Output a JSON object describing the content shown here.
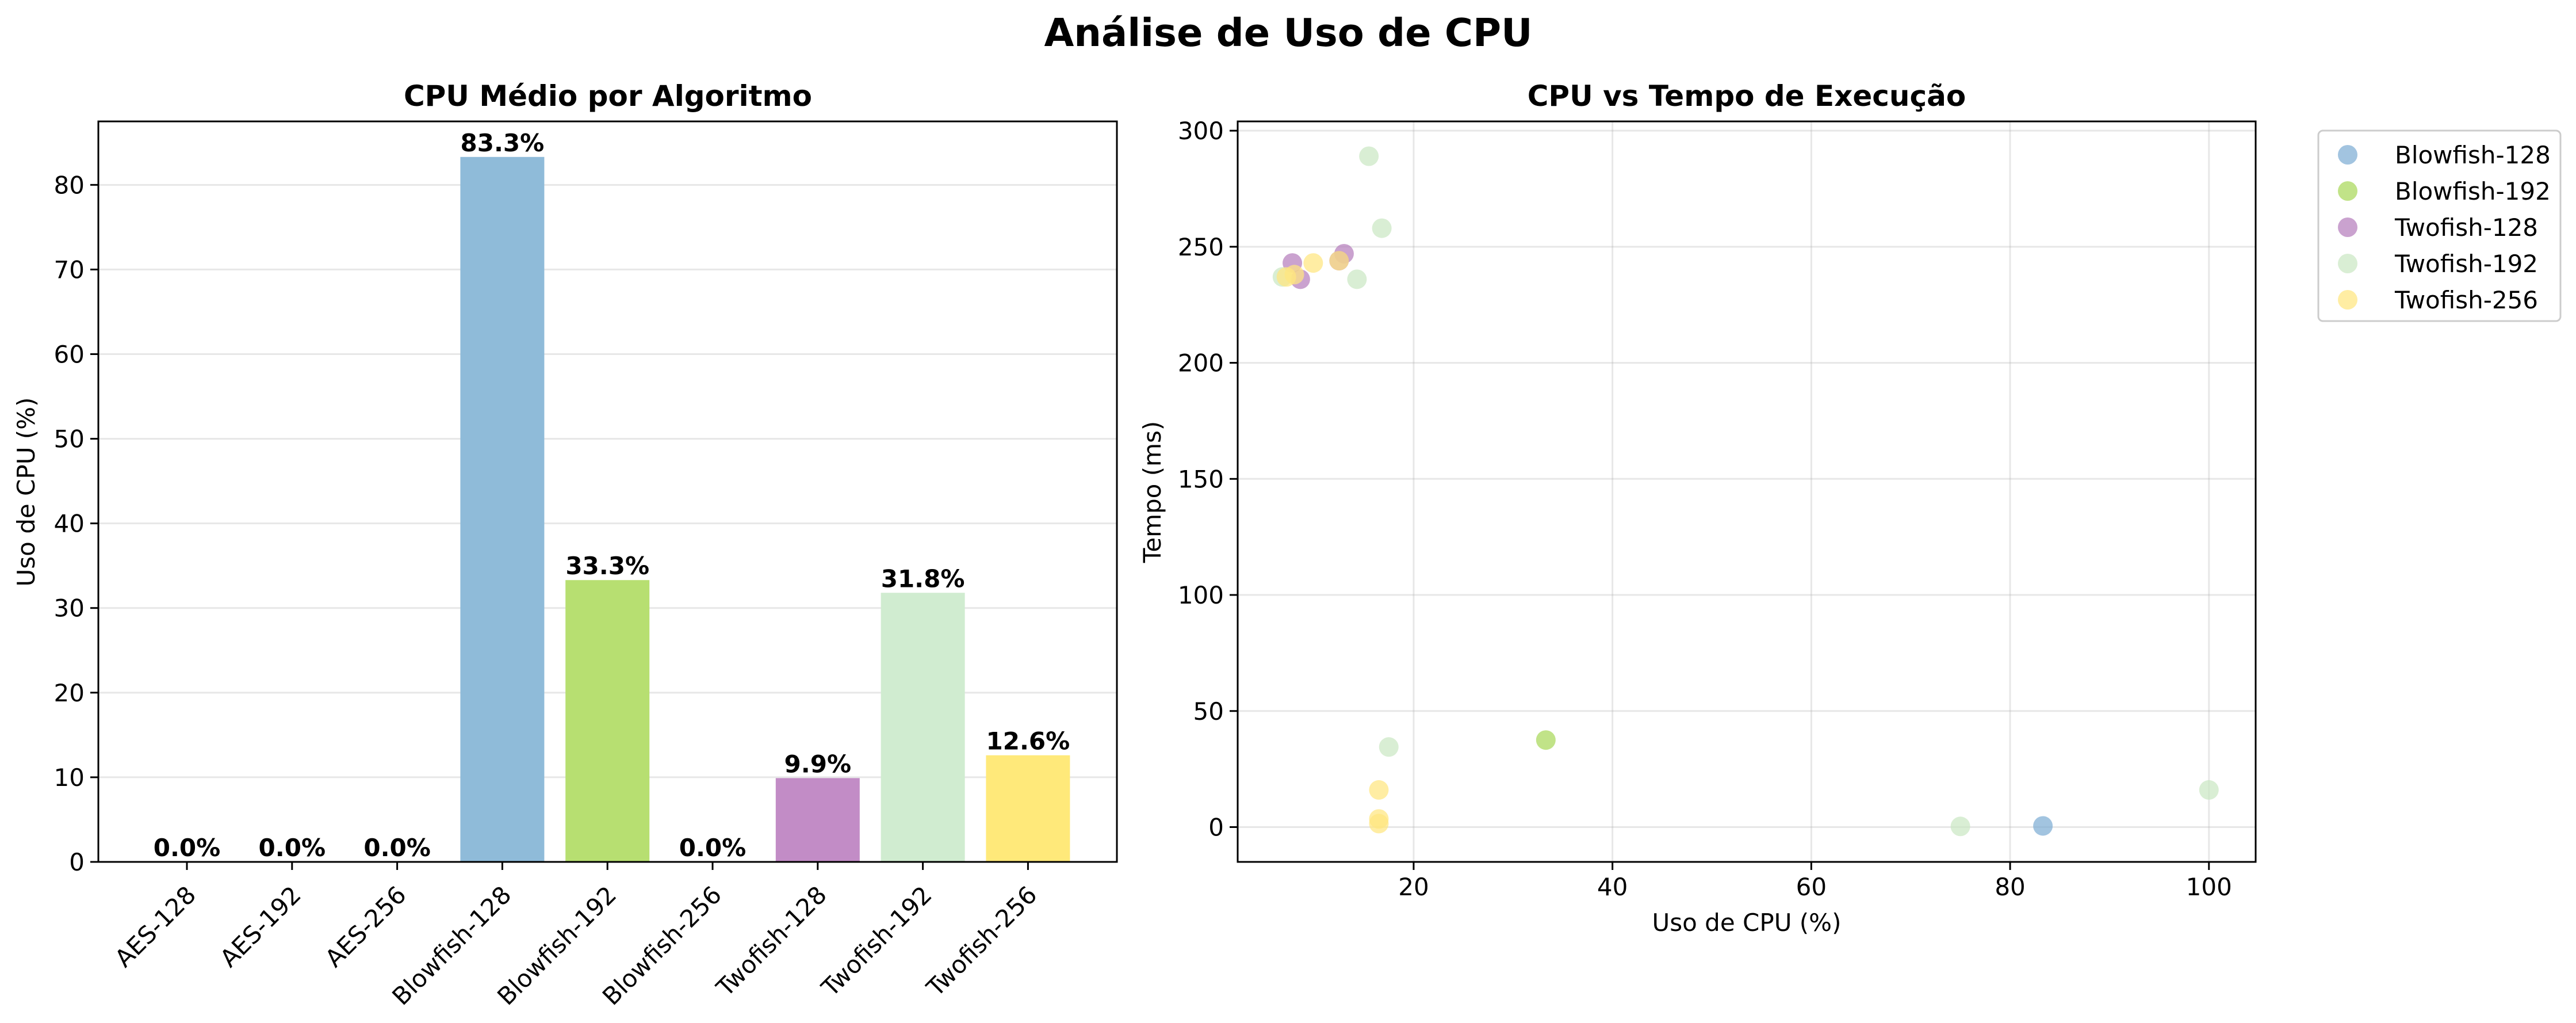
{
  "title": "Análise de Uso de CPU",
  "chart_data": [
    {
      "type": "bar",
      "title": "CPU Médio por Algoritmo",
      "xlabel": "",
      "ylabel": "Uso de CPU (%)",
      "ylim": [
        0,
        87.5
      ],
      "yticks": [
        0,
        10,
        20,
        30,
        40,
        50,
        60,
        70,
        80
      ],
      "grid": "y",
      "categories": [
        "AES-128",
        "AES-192",
        "AES-256",
        "Blowfish-128",
        "Blowfish-192",
        "Blowfish-256",
        "Twofish-128",
        "Twofish-192",
        "Twofish-256"
      ],
      "values": [
        0.0,
        0.0,
        0.0,
        83.3,
        33.3,
        0.0,
        9.9,
        31.8,
        12.6
      ],
      "value_labels": [
        "0.0%",
        "0.0%",
        "0.0%",
        "83.3%",
        "33.3%",
        "0.0%",
        "9.9%",
        "31.8%",
        "12.6%"
      ],
      "colors": [
        "#8fbbd9",
        "#8fbbd9",
        "#8fbbd9",
        "#8fbbd9",
        "#b7df71",
        "#b7df71",
        "#c28cc6",
        "#d0ecd0",
        "#ffe97a"
      ]
    },
    {
      "type": "scatter",
      "title": "CPU vs Tempo de Execução",
      "xlabel": "Uso de CPU (%)",
      "ylabel": "Tempo (ms)",
      "xlim": [
        2.3,
        104.7
      ],
      "ylim": [
        -15,
        304
      ],
      "xticks": [
        20,
        40,
        60,
        80,
        100
      ],
      "yticks": [
        0,
        50,
        100,
        150,
        200,
        250,
        300
      ],
      "grid": "both",
      "legend": "outside-upper-right",
      "series": [
        {
          "name": "Blowfish-128",
          "color": "#7eadd4",
          "x": [
            83.3
          ],
          "y": [
            0.5
          ]
        },
        {
          "name": "Blowfish-192",
          "color": "#a9d85a",
          "x": [
            33.3
          ],
          "y": [
            37.5
          ]
        },
        {
          "name": "Twofish-128",
          "color": "#b57ebd",
          "x": [
            7.8,
            8.6,
            13.0,
            12.5
          ],
          "y": [
            243,
            236,
            247,
            244
          ]
        },
        {
          "name": "Twofish-192",
          "color": "#cbe8c4",
          "x": [
            15.5,
            16.8,
            14.3,
            6.8,
            17.5,
            75.0,
            100.0
          ],
          "y": [
            289,
            258,
            236,
            237,
            34.5,
            0.3,
            16
          ]
        },
        {
          "name": "Twofish-256",
          "color": "#ffe680",
          "x": [
            7.2,
            8.0,
            9.9,
            12.5,
            16.5,
            16.5,
            16.5
          ],
          "y": [
            237,
            238,
            243,
            244,
            16,
            3.5,
            1.5
          ]
        }
      ]
    }
  ]
}
